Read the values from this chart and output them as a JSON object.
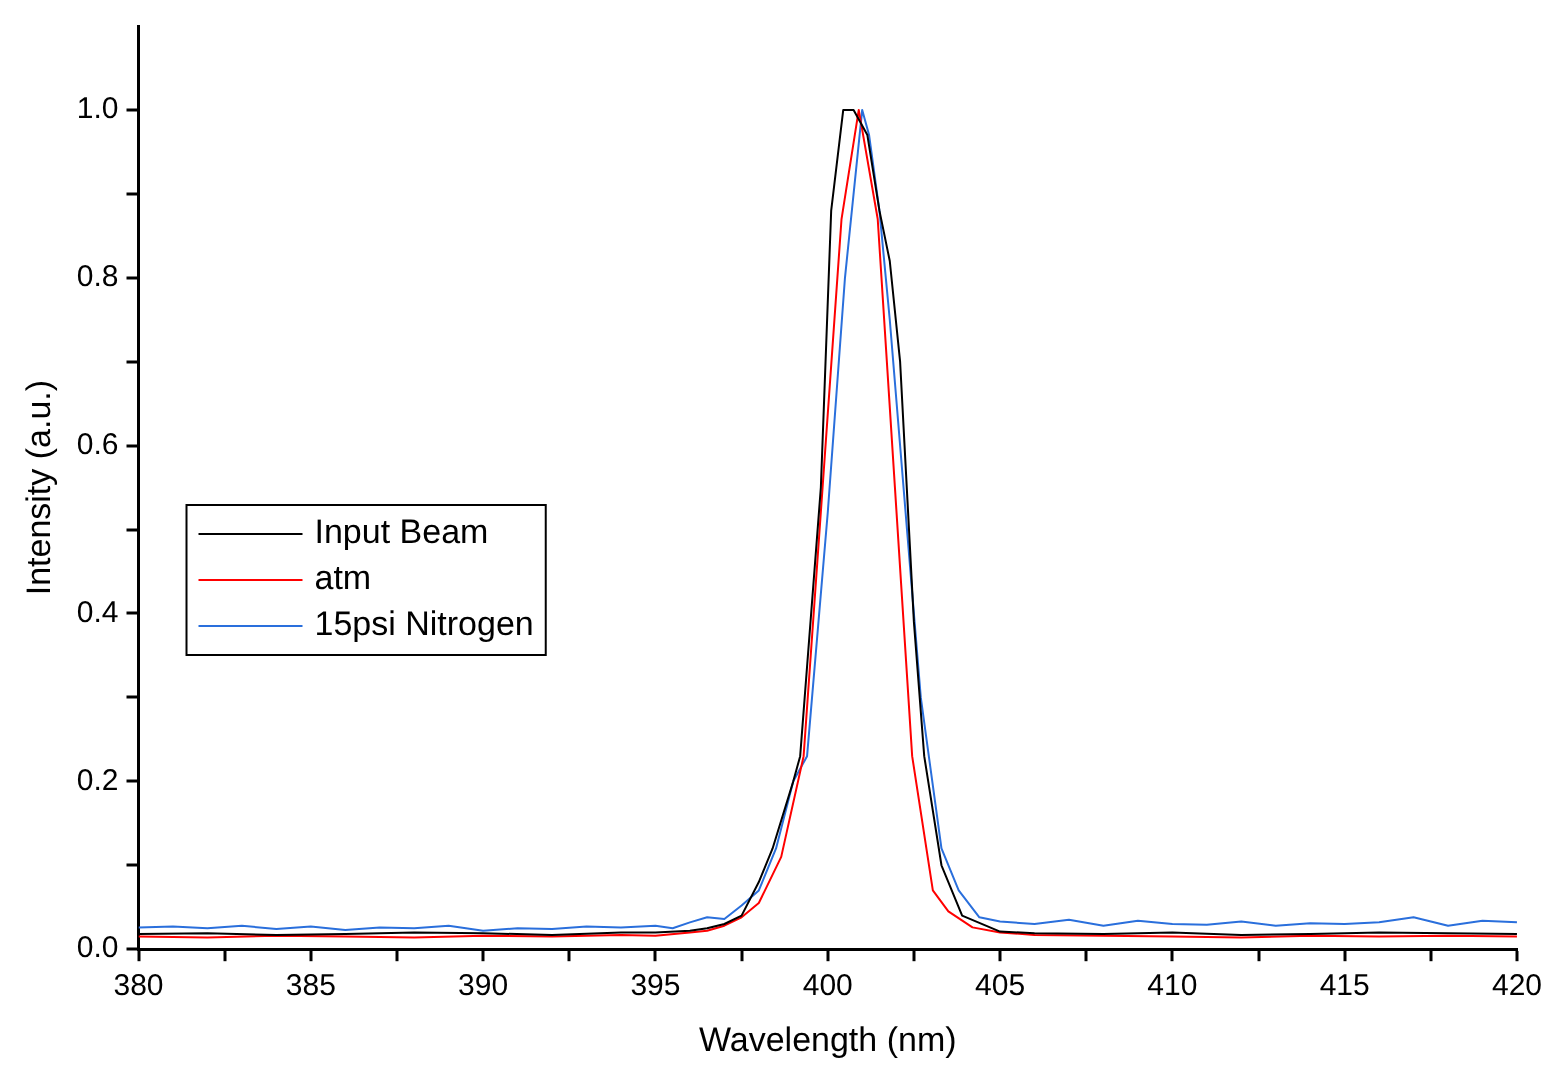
{
  "chart_data": {
    "type": "line",
    "xlabel": "Wavelength (nm)",
    "ylabel": "Intensity (a.u.)",
    "xlim": [
      380,
      420
    ],
    "xticks": [
      380,
      {
        "value": 382.5,
        "label": null
      },
      385,
      {
        "value": 387.5,
        "label": null
      },
      390,
      {
        "value": 392.5,
        "label": null
      },
      395,
      {
        "value": 397.5,
        "label": null
      },
      400,
      {
        "value": 402.5,
        "label": null
      },
      405,
      {
        "value": 407.5,
        "label": null
      },
      410,
      {
        "value": 412.5,
        "label": null
      },
      415,
      {
        "value": 417.5,
        "label": null
      },
      420
    ],
    "ylim": [
      0,
      1.1
    ],
    "yticks": [
      {
        "value": 0,
        "label": "0.0"
      },
      {
        "value": 0.1,
        "label": null
      },
      {
        "value": 0.2,
        "label": "0.2"
      },
      {
        "value": 0.3,
        "label": null
      },
      {
        "value": 0.4,
        "label": "0.4"
      },
      {
        "value": 0.5,
        "label": null
      },
      {
        "value": 0.6,
        "label": "0.6"
      },
      {
        "value": 0.7,
        "label": null
      },
      {
        "value": 0.8,
        "label": "0.8"
      },
      {
        "value": 0.9,
        "label": null
      },
      {
        "value": 1,
        "label": "1.0"
      }
    ],
    "grid": false,
    "legend": "left",
    "marker": "none",
    "line_style": "solid",
    "series": [
      {
        "name": "Input Beam",
        "color": "#000000",
        "x": [
          380,
          382,
          384,
          386,
          388,
          390,
          392,
          394,
          395,
          396,
          396.5,
          397,
          397.5,
          398,
          398.4,
          399,
          399.2,
          399.8,
          400.1,
          400.45,
          400.75,
          401.15,
          401.5,
          401.8,
          402.1,
          402.5,
          402.8,
          403.3,
          403.9,
          405,
          406,
          408,
          410,
          412,
          414,
          416,
          418,
          420
        ],
        "values": [
          0.018,
          0.019,
          0.017,
          0.018,
          0.02,
          0.019,
          0.017,
          0.02,
          0.02,
          0.022,
          0.025,
          0.03,
          0.04,
          0.08,
          0.12,
          0.2,
          0.23,
          0.55,
          0.88,
          1.0,
          1.0,
          0.97,
          0.88,
          0.82,
          0.7,
          0.39,
          0.23,
          0.1,
          0.04,
          0.021,
          0.019,
          0.018,
          0.02,
          0.017,
          0.018,
          0.02,
          0.019,
          0.018
        ]
      },
      {
        "name": "atm",
        "color": "#ff0000",
        "x": [
          380,
          382,
          384,
          386,
          388,
          390,
          392,
          394,
          395,
          396,
          396.5,
          397,
          397.5,
          398,
          398.65,
          399.3,
          399.85,
          400.4,
          400.9,
          401.45,
          401.95,
          402.45,
          403.05,
          403.5,
          404.2,
          405,
          406,
          408,
          410,
          412,
          414,
          416,
          418,
          420
        ],
        "values": [
          0.015,
          0.014,
          0.016,
          0.015,
          0.014,
          0.016,
          0.015,
          0.017,
          0.016,
          0.02,
          0.022,
          0.028,
          0.038,
          0.055,
          0.11,
          0.23,
          0.55,
          0.87,
          1.0,
          0.87,
          0.55,
          0.23,
          0.07,
          0.045,
          0.026,
          0.02,
          0.017,
          0.016,
          0.015,
          0.014,
          0.016,
          0.015,
          0.016,
          0.015
        ]
      },
      {
        "name": "15psi Nitrogen",
        "color": "#2a6fdc",
        "x": [
          380,
          381,
          382,
          383,
          384,
          385,
          386,
          387,
          388,
          389,
          390,
          391,
          392,
          393,
          394,
          395,
          395.5,
          396,
          396.5,
          397,
          397.5,
          398,
          398.5,
          399,
          399.4,
          400,
          400.5,
          401,
          401.2,
          401.5,
          401.8,
          402.3,
          402.7,
          403.3,
          403.8,
          404.4,
          405,
          406,
          407,
          408,
          409,
          410,
          411,
          412,
          413,
          414,
          415,
          416,
          417,
          418,
          419,
          420
        ],
        "values": [
          0.026,
          0.027,
          0.025,
          0.028,
          0.024,
          0.027,
          0.023,
          0.026,
          0.025,
          0.028,
          0.022,
          0.025,
          0.024,
          0.027,
          0.026,
          0.028,
          0.025,
          0.032,
          0.038,
          0.036,
          0.052,
          0.07,
          0.12,
          0.2,
          0.23,
          0.52,
          0.8,
          1.0,
          0.97,
          0.88,
          0.75,
          0.5,
          0.3,
          0.12,
          0.07,
          0.038,
          0.033,
          0.03,
          0.035,
          0.028,
          0.034,
          0.03,
          0.029,
          0.033,
          0.028,
          0.031,
          0.03,
          0.032,
          0.038,
          0.028,
          0.034,
          0.032
        ]
      }
    ]
  }
}
